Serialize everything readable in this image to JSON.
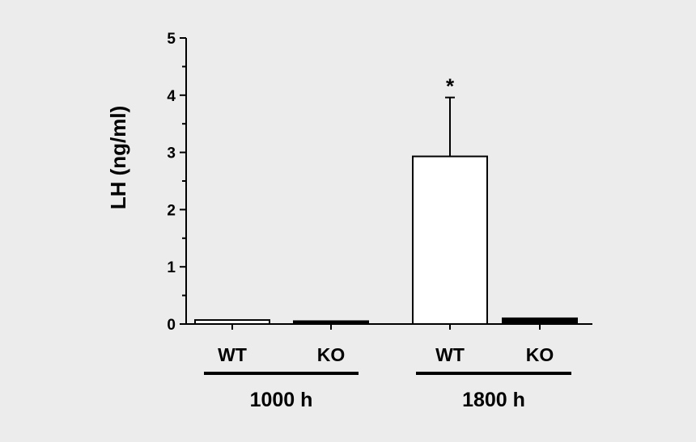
{
  "chart_data": {
    "type": "bar",
    "title": "",
    "ylabel": "LH (ng/ml)",
    "xlabel": "",
    "ylim": [
      0,
      5
    ],
    "y_ticks": [
      "0",
      "1",
      "2",
      "3",
      "4",
      "5"
    ],
    "grid": false,
    "legend": "none",
    "groups": [
      {
        "label": "1000 h",
        "bars": [
          {
            "label": "WT",
            "value": 0.07,
            "error": 0,
            "fill": "#ffffff",
            "annotation": ""
          },
          {
            "label": "KO",
            "value": 0.05,
            "error": 0,
            "fill": "#000000",
            "annotation": ""
          }
        ]
      },
      {
        "label": "1800 h",
        "bars": [
          {
            "label": "WT",
            "value": 2.93,
            "error": 1.03,
            "fill": "#ffffff",
            "annotation": "*"
          },
          {
            "label": "KO",
            "value": 0.1,
            "error": 0,
            "fill": "#000000",
            "annotation": ""
          }
        ]
      }
    ]
  }
}
